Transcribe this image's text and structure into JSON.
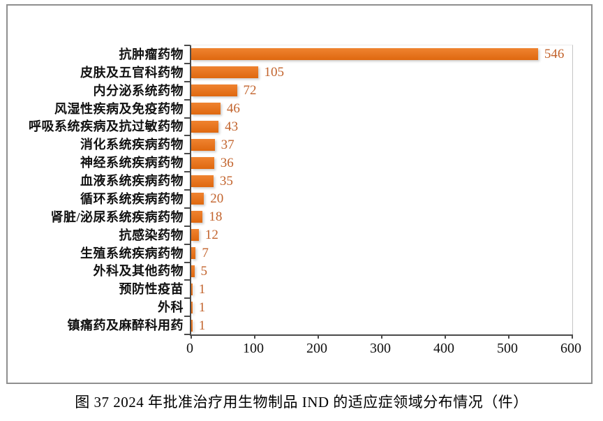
{
  "figure": {
    "caption": "图 37  2024 年批准治疗用生物制品 IND 的适应症领域分布情况（件）"
  },
  "chart_data": {
    "type": "bar",
    "orientation": "horizontal",
    "title": "",
    "xlabel": "",
    "ylabel": "",
    "categories": [
      "抗肿瘤药物",
      "皮肤及五官科药物",
      "内分泌系统药物",
      "风湿性疾病及免疫药物",
      "呼吸系统疾病及抗过敏药物",
      "消化系统疾病药物",
      "神经系统疾病药物",
      "血液系统疾病药物",
      "循环系统疾病药物",
      "肾脏/泌尿系统疾病药物",
      "抗感染药物",
      "生殖系统疾病药物",
      "外科及其他药物",
      "预防性疫苗",
      "外科",
      "镇痛药及麻醉科用药"
    ],
    "values": [
      546,
      105,
      72,
      46,
      43,
      37,
      36,
      35,
      20,
      18,
      12,
      7,
      5,
      1,
      1,
      1
    ],
    "xlim": [
      0,
      600
    ],
    "x_ticks": [
      "0",
      "100",
      "200",
      "300",
      "400",
      "500",
      "600"
    ],
    "grid": false,
    "legend": "none",
    "bar_color": "#e1701c",
    "value_label_color": "#c2632c"
  }
}
